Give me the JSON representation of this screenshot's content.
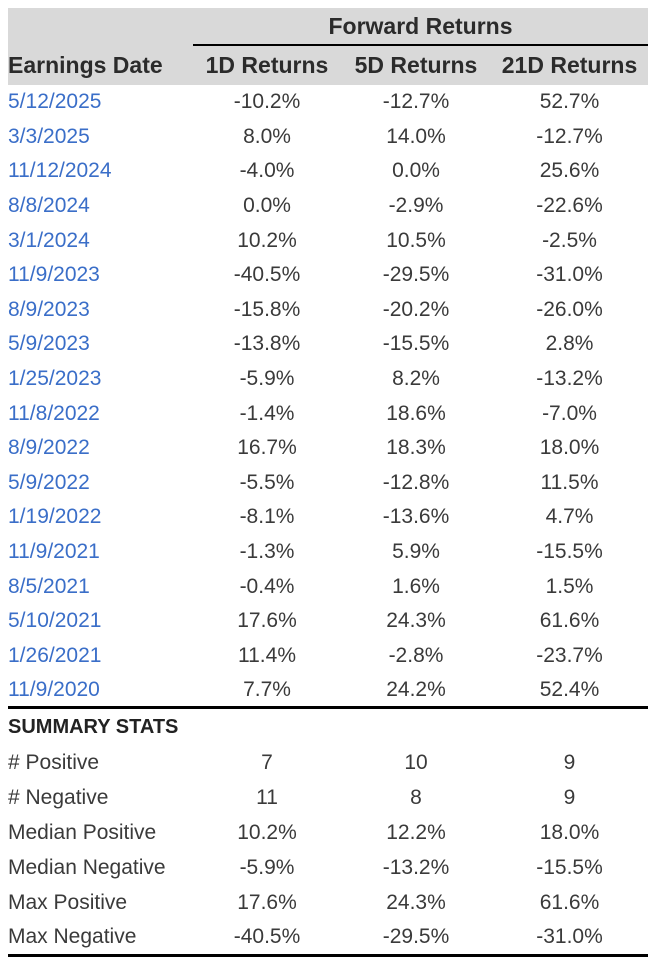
{
  "chart_data": {
    "type": "table",
    "group_header": "Forward Returns",
    "columns": [
      "Earnings Date",
      "1D Returns",
      "5D Returns",
      "21D Returns"
    ],
    "rows": [
      [
        "5/12/2025",
        "-10.2%",
        "-12.7%",
        "52.7%"
      ],
      [
        "3/3/2025",
        "8.0%",
        "14.0%",
        "-12.7%"
      ],
      [
        "11/12/2024",
        "-4.0%",
        "0.0%",
        "25.6%"
      ],
      [
        "8/8/2024",
        "0.0%",
        "-2.9%",
        "-22.6%"
      ],
      [
        "3/1/2024",
        "10.2%",
        "10.5%",
        "-2.5%"
      ],
      [
        "11/9/2023",
        "-40.5%",
        "-29.5%",
        "-31.0%"
      ],
      [
        "8/9/2023",
        "-15.8%",
        "-20.2%",
        "-26.0%"
      ],
      [
        "5/9/2023",
        "-13.8%",
        "-15.5%",
        "2.8%"
      ],
      [
        "1/25/2023",
        "-5.9%",
        "8.2%",
        "-13.2%"
      ],
      [
        "11/8/2022",
        "-1.4%",
        "18.6%",
        "-7.0%"
      ],
      [
        "8/9/2022",
        "16.7%",
        "18.3%",
        "18.0%"
      ],
      [
        "5/9/2022",
        "-5.5%",
        "-12.8%",
        "11.5%"
      ],
      [
        "1/19/2022",
        "-8.1%",
        "-13.6%",
        "4.7%"
      ],
      [
        "11/9/2021",
        "-1.3%",
        "5.9%",
        "-15.5%"
      ],
      [
        "8/5/2021",
        "-0.4%",
        "1.6%",
        "1.5%"
      ],
      [
        "5/10/2021",
        "17.6%",
        "24.3%",
        "61.6%"
      ],
      [
        "1/26/2021",
        "11.4%",
        "-2.8%",
        "-23.7%"
      ],
      [
        "11/9/2020",
        "7.7%",
        "24.2%",
        "52.4%"
      ]
    ],
    "summary_title": "SUMMARY STATS",
    "summary_rows": [
      [
        "# Positive",
        "7",
        "10",
        "9"
      ],
      [
        "# Negative",
        "11",
        "8",
        "9"
      ],
      [
        "Median Positive",
        "10.2%",
        "12.2%",
        "18.0%"
      ],
      [
        "Median Negative",
        "-5.9%",
        "-13.2%",
        "-15.5%"
      ],
      [
        "Max Positive",
        "17.6%",
        "24.3%",
        "61.6%"
      ],
      [
        "Max Negative",
        "-40.5%",
        "-29.5%",
        "-31.0%"
      ]
    ]
  },
  "colors": {
    "header_bg": "#d9d9d9",
    "date_link_blue": "#3a6ec8",
    "value_text": "#3a3a3a",
    "rule_black": "#000000"
  }
}
